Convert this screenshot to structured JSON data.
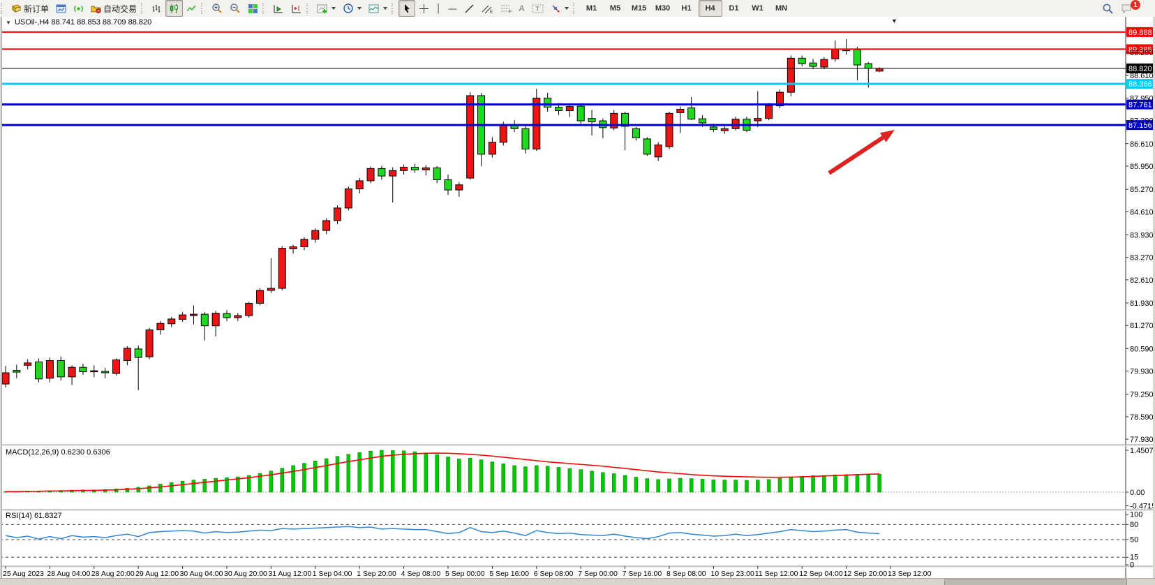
{
  "toolbar": {
    "new_order_label": "新订单",
    "autotrade_label": "自动交易",
    "timeframes": [
      "M1",
      "M5",
      "M15",
      "M30",
      "H1",
      "H4",
      "D1",
      "W1",
      "MN"
    ],
    "active_timeframe": "H4",
    "notification_badge": "1",
    "icons": [
      "new-order",
      "chart-window",
      "signals",
      "autotrade",
      "bar-chart",
      "candle-chart",
      "line-chart",
      "zoom-in",
      "zoom-out",
      "tile-windows",
      "autoscroll",
      "chart-shift",
      "indicators",
      "periods-clock",
      "templates",
      "cursor",
      "crosshair",
      "vertical-line",
      "horizontal-line",
      "trendline",
      "equidistant-channel",
      "fibonacci",
      "text",
      "text-label",
      "arrows",
      "search",
      "chat"
    ]
  },
  "quote_bar": {
    "dropdown_icon": "▼",
    "text": "USOil-,H4  88.741 88.853 88.709 88.820"
  },
  "indicator_labels": {
    "macd": "MACD(12,26,9) 0.6230 0.6306",
    "rsi": "RSI(14) 61.8327"
  },
  "colors": {
    "bull": "#EC1515",
    "bear": "#1FD81F",
    "wick": "#000000",
    "macd_hist": "#00C800",
    "macd_signal": "#FF0000",
    "rsi_line": "#2E86D7",
    "level_red": "#FF0000",
    "level_cyan": "#00CBFF",
    "level_blue": "#0000CD",
    "current_price": "#000000",
    "arrow": "#DD2222"
  },
  "price_axis": {
    "ticks": [
      "89.290",
      "88.610",
      "87.950",
      "87.290",
      "86.610",
      "85.950",
      "85.270",
      "84.610",
      "83.930",
      "83.270",
      "82.610",
      "81.930",
      "81.270",
      "80.590",
      "79.930",
      "79.250",
      "78.590",
      "77.930"
    ],
    "badges": [
      {
        "label": "89.888",
        "price": 89.888,
        "color": "#FF0000",
        "width": 2
      },
      {
        "label": "89.385",
        "price": 89.385,
        "color": "#FF0000",
        "width": 2
      },
      {
        "label": "88.820",
        "price": 88.82,
        "color": "#000000",
        "width": 1
      },
      {
        "label": "88.366",
        "price": 88.366,
        "color": "#00CBFF",
        "width": 3
      },
      {
        "label": "87.761",
        "price": 87.761,
        "color": "#0000CD",
        "width": 3
      },
      {
        "label": "87.156",
        "price": 87.156,
        "color": "#0000CD",
        "width": 3
      }
    ]
  },
  "macd_axis": {
    "ticks": [
      {
        "label": "1.4507",
        "value": 1.4507
      },
      {
        "label": "0.00",
        "value": 0.0
      },
      {
        "label": "-0.4715",
        "value": -0.4715
      }
    ]
  },
  "rsi_axis": {
    "ticks": [
      {
        "label": "100",
        "value": 100
      },
      {
        "label": "80",
        "value": 80
      },
      {
        "label": "50",
        "value": 50
      },
      {
        "label": "15",
        "value": 15
      },
      {
        "label": "0",
        "value": 0
      }
    ],
    "dashed_levels": [
      80,
      50,
      15
    ]
  },
  "time_axis": {
    "labels": [
      "25 Aug 2023",
      "28 Aug 04:00",
      "28 Aug 20:00",
      "29 Aug 12:00",
      "30 Aug 04:00",
      "30 Aug 20:00",
      "31 Aug 12:00",
      "1 Sep 04:00",
      "1 Sep 20:00",
      "4 Sep 08:00",
      "5 Sep 00:00",
      "5 Sep 16:00",
      "6 Sep 08:00",
      "7 Sep 00:00",
      "7 Sep 16:00",
      "8 Sep 08:00",
      "10 Sep 23:00",
      "11 Sep 12:00",
      "12 Sep 04:00",
      "12 Sep 20:00",
      "13 Sep 12:00"
    ]
  },
  "annotations": {
    "arrow": {
      "from": [
        1188,
        248
      ],
      "to": [
        1282,
        186
      ],
      "color": "#DD2222"
    }
  },
  "chart_data": [
    {
      "id": "main",
      "type": "candlestick",
      "symbol": "USOil",
      "timeframe": "H4",
      "title": "USOil-,H4  88.741 88.853 88.709 88.820",
      "ylim": [
        77.79,
        90.01
      ],
      "grid": false,
      "ohlc": [
        [
          79.55,
          80.08,
          79.45,
          79.88
        ],
        [
          79.95,
          80.12,
          79.72,
          79.9
        ],
        [
          80.1,
          80.28,
          79.98,
          80.17
        ],
        [
          80.2,
          80.3,
          79.6,
          79.7
        ],
        [
          79.72,
          80.33,
          79.6,
          80.24
        ],
        [
          80.24,
          80.36,
          79.65,
          79.76
        ],
        [
          79.76,
          80.1,
          79.52,
          80.04
        ],
        [
          80.04,
          80.15,
          79.82,
          79.91
        ],
        [
          79.92,
          80.1,
          79.75,
          79.94
        ],
        [
          79.92,
          80.02,
          79.72,
          79.88
        ],
        [
          79.86,
          80.3,
          79.8,
          80.26
        ],
        [
          80.24,
          80.66,
          80.1,
          80.6
        ],
        [
          80.58,
          80.68,
          79.37,
          80.33
        ],
        [
          80.35,
          81.2,
          80.28,
          81.14
        ],
        [
          81.14,
          81.4,
          81.0,
          81.33
        ],
        [
          81.32,
          81.52,
          81.22,
          81.46
        ],
        [
          81.45,
          81.66,
          81.38,
          81.58
        ],
        [
          81.56,
          81.86,
          81.3,
          81.6
        ],
        [
          81.6,
          81.66,
          80.83,
          81.26
        ],
        [
          81.26,
          81.7,
          80.95,
          81.63
        ],
        [
          81.62,
          81.72,
          81.4,
          81.5
        ],
        [
          81.5,
          81.64,
          81.4,
          81.56
        ],
        [
          81.56,
          81.97,
          81.5,
          81.92
        ],
        [
          81.92,
          82.36,
          81.86,
          82.3
        ],
        [
          82.3,
          83.25,
          82.22,
          82.36
        ],
        [
          82.36,
          83.6,
          82.3,
          83.54
        ],
        [
          83.52,
          83.64,
          83.38,
          83.58
        ],
        [
          83.58,
          83.86,
          83.48,
          83.8
        ],
        [
          83.8,
          84.12,
          83.7,
          84.06
        ],
        [
          84.06,
          84.42,
          83.95,
          84.35
        ],
        [
          84.35,
          84.8,
          84.25,
          84.72
        ],
        [
          84.72,
          85.35,
          84.65,
          85.28
        ],
        [
          85.28,
          85.6,
          85.15,
          85.52
        ],
        [
          85.52,
          85.94,
          85.45,
          85.88
        ],
        [
          85.88,
          85.96,
          85.55,
          85.66
        ],
        [
          85.66,
          85.92,
          84.88,
          85.82
        ],
        [
          85.82,
          86.0,
          85.7,
          85.92
        ],
        [
          85.92,
          86.02,
          85.75,
          85.84
        ],
        [
          85.84,
          85.98,
          85.68,
          85.9
        ],
        [
          85.9,
          85.95,
          85.45,
          85.55
        ],
        [
          85.55,
          85.7,
          85.1,
          85.25
        ],
        [
          85.25,
          85.48,
          85.05,
          85.4
        ],
        [
          85.6,
          88.12,
          85.55,
          88.02
        ],
        [
          88.02,
          88.1,
          85.95,
          86.3
        ],
        [
          86.3,
          86.8,
          86.2,
          86.65
        ],
        [
          86.65,
          87.25,
          86.55,
          87.15
        ],
        [
          87.15,
          87.3,
          86.95,
          87.05
        ],
        [
          87.05,
          87.12,
          86.32,
          86.45
        ],
        [
          86.45,
          88.22,
          86.4,
          87.95
        ],
        [
          87.95,
          88.1,
          87.55,
          87.68
        ],
        [
          87.68,
          87.8,
          87.45,
          87.58
        ],
        [
          87.58,
          87.75,
          87.4,
          87.7
        ],
        [
          87.71,
          87.78,
          87.2,
          87.28
        ],
        [
          87.35,
          87.6,
          86.85,
          87.25
        ],
        [
          87.28,
          87.35,
          86.77,
          87.08
        ],
        [
          87.07,
          87.6,
          87.0,
          87.5
        ],
        [
          87.5,
          87.55,
          86.42,
          87.12
        ],
        [
          87.05,
          87.1,
          86.7,
          86.78
        ],
        [
          86.75,
          86.8,
          86.25,
          86.3
        ],
        [
          86.22,
          86.65,
          86.1,
          86.57
        ],
        [
          86.52,
          87.55,
          86.45,
          87.5
        ],
        [
          87.52,
          87.7,
          86.92,
          87.62
        ],
        [
          87.66,
          87.98,
          87.3,
          87.33
        ],
        [
          87.34,
          87.45,
          87.1,
          87.22
        ],
        [
          87.1,
          87.2,
          86.95,
          87.03
        ],
        [
          86.99,
          87.12,
          86.9,
          87.05
        ],
        [
          87.05,
          87.4,
          87.0,
          87.33
        ],
        [
          87.33,
          87.4,
          86.95,
          87.0
        ],
        [
          87.28,
          88.15,
          87.1,
          87.35
        ],
        [
          87.35,
          87.8,
          87.3,
          87.72
        ],
        [
          87.72,
          88.2,
          87.65,
          88.12
        ],
        [
          88.12,
          89.2,
          88.0,
          89.12
        ],
        [
          89.12,
          89.2,
          88.88,
          88.96
        ],
        [
          88.98,
          89.1,
          88.8,
          88.88
        ],
        [
          88.86,
          89.15,
          88.8,
          89.08
        ],
        [
          89.1,
          89.64,
          89.02,
          89.39
        ],
        [
          89.39,
          89.68,
          89.22,
          89.34
        ],
        [
          89.37,
          89.45,
          88.47,
          88.92
        ],
        [
          88.96,
          89.0,
          88.26,
          88.82
        ],
        [
          88.741,
          88.853,
          88.709,
          88.82
        ]
      ]
    },
    {
      "id": "macd",
      "type": "bar",
      "title": "MACD(12,26,9)",
      "current_values": "0.6230 0.6306",
      "ylim": [
        -0.4715,
        1.4507
      ],
      "values": [
        0.02,
        0.03,
        0.03,
        0.04,
        0.05,
        0.06,
        0.07,
        0.08,
        0.08,
        0.09,
        0.11,
        0.14,
        0.17,
        0.22,
        0.28,
        0.33,
        0.38,
        0.42,
        0.45,
        0.48,
        0.5,
        0.53,
        0.58,
        0.65,
        0.73,
        0.83,
        0.92,
        1.0,
        1.08,
        1.16,
        1.24,
        1.31,
        1.37,
        1.42,
        1.45,
        1.44,
        1.43,
        1.4,
        1.36,
        1.3,
        1.22,
        1.15,
        1.18,
        1.12,
        1.05,
        0.98,
        0.92,
        0.88,
        0.92,
        0.9,
        0.86,
        0.82,
        0.78,
        0.73,
        0.68,
        0.64,
        0.58,
        0.52,
        0.47,
        0.44,
        0.46,
        0.48,
        0.47,
        0.45,
        0.43,
        0.42,
        0.42,
        0.41,
        0.42,
        0.44,
        0.48,
        0.52,
        0.55,
        0.57,
        0.58,
        0.6,
        0.61,
        0.62,
        0.62,
        0.623
      ],
      "signal": [
        0.02,
        0.02,
        0.03,
        0.03,
        0.04,
        0.04,
        0.05,
        0.06,
        0.06,
        0.07,
        0.08,
        0.1,
        0.12,
        0.15,
        0.18,
        0.22,
        0.26,
        0.3,
        0.34,
        0.38,
        0.42,
        0.46,
        0.5,
        0.55,
        0.6,
        0.66,
        0.72,
        0.78,
        0.85,
        0.92,
        0.99,
        1.06,
        1.12,
        1.18,
        1.24,
        1.28,
        1.31,
        1.33,
        1.345,
        1.35,
        1.345,
        1.33,
        1.31,
        1.28,
        1.25,
        1.21,
        1.17,
        1.13,
        1.09,
        1.05,
        1.02,
        0.99,
        0.96,
        0.93,
        0.9,
        0.86,
        0.82,
        0.78,
        0.74,
        0.7,
        0.67,
        0.64,
        0.61,
        0.585,
        0.565,
        0.55,
        0.54,
        0.53,
        0.52,
        0.515,
        0.515,
        0.52,
        0.53,
        0.545,
        0.56,
        0.575,
        0.59,
        0.605,
        0.62,
        0.6306
      ]
    },
    {
      "id": "rsi",
      "type": "line",
      "title": "RSI(14)",
      "current_value": "61.8327",
      "ylim": [
        0,
        100
      ],
      "values": [
        58,
        54,
        57,
        51,
        56,
        52,
        58,
        55,
        56,
        54,
        58,
        61,
        56,
        64,
        66,
        67,
        68,
        67,
        63,
        66,
        64,
        65,
        67,
        69,
        68,
        72,
        71,
        72,
        73,
        74,
        75,
        76,
        74,
        75,
        71,
        72,
        71,
        70,
        70,
        66,
        62,
        64,
        74,
        66,
        64,
        67,
        63,
        58,
        68,
        64,
        62,
        63,
        60,
        59,
        58,
        61,
        57,
        54,
        52,
        56,
        63,
        64,
        61,
        59,
        57,
        58,
        61,
        58,
        60,
        63,
        66,
        70,
        68,
        66,
        67,
        69,
        70,
        65,
        63,
        61.83
      ]
    }
  ]
}
